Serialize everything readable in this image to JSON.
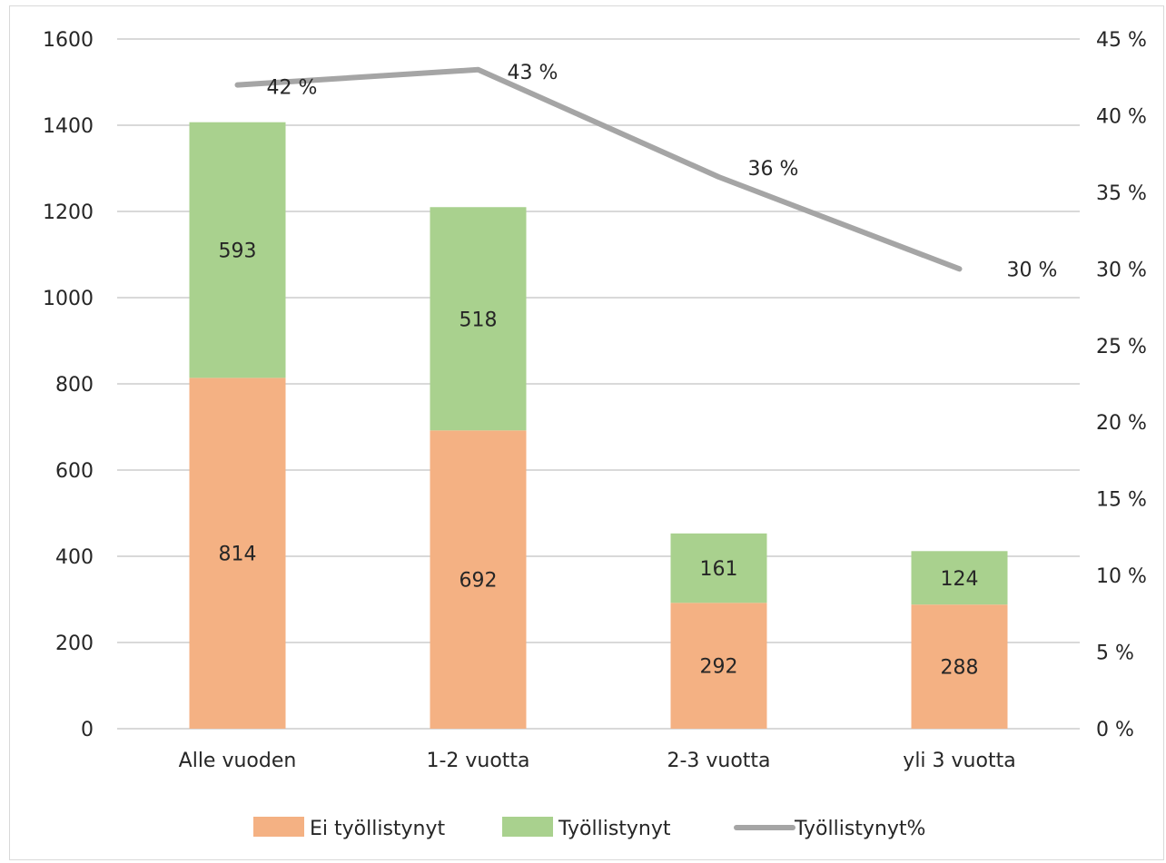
{
  "chart_data": {
    "type": "bar",
    "stacked": true,
    "categories": [
      "Alle vuoden",
      "1-2 vuotta",
      "2-3 vuotta",
      "yli 3 vuotta"
    ],
    "series": [
      {
        "name": "Ei työllistynyt",
        "type": "bar",
        "axis": "left",
        "values": [
          814,
          692,
          292,
          288
        ],
        "color": "#F4B183"
      },
      {
        "name": "Työllistynyt",
        "type": "bar",
        "axis": "left",
        "values": [
          593,
          518,
          161,
          124
        ],
        "color": "#A9D18E"
      },
      {
        "name": "Työllistynyt%",
        "type": "line",
        "axis": "right",
        "values": [
          42,
          43,
          36,
          30
        ],
        "labels": [
          "42 %",
          "43 %",
          "36 %",
          "30 %"
        ],
        "color": "#A5A5A5"
      }
    ],
    "ylim": [
      0,
      1600
    ],
    "yticks": [
      "0",
      "200",
      "400",
      "600",
      "800",
      "1000",
      "1200",
      "1400",
      "1600"
    ],
    "y2lim": [
      0,
      45
    ],
    "y2ticks": [
      "0 %",
      "5 %",
      "10 %",
      "15 %",
      "20 %",
      "25 %",
      "30 %",
      "35 %",
      "40 %",
      "45 %"
    ],
    "grid": true,
    "legend": "bottom",
    "title": "",
    "xlabel": "",
    "ylabel": ""
  }
}
